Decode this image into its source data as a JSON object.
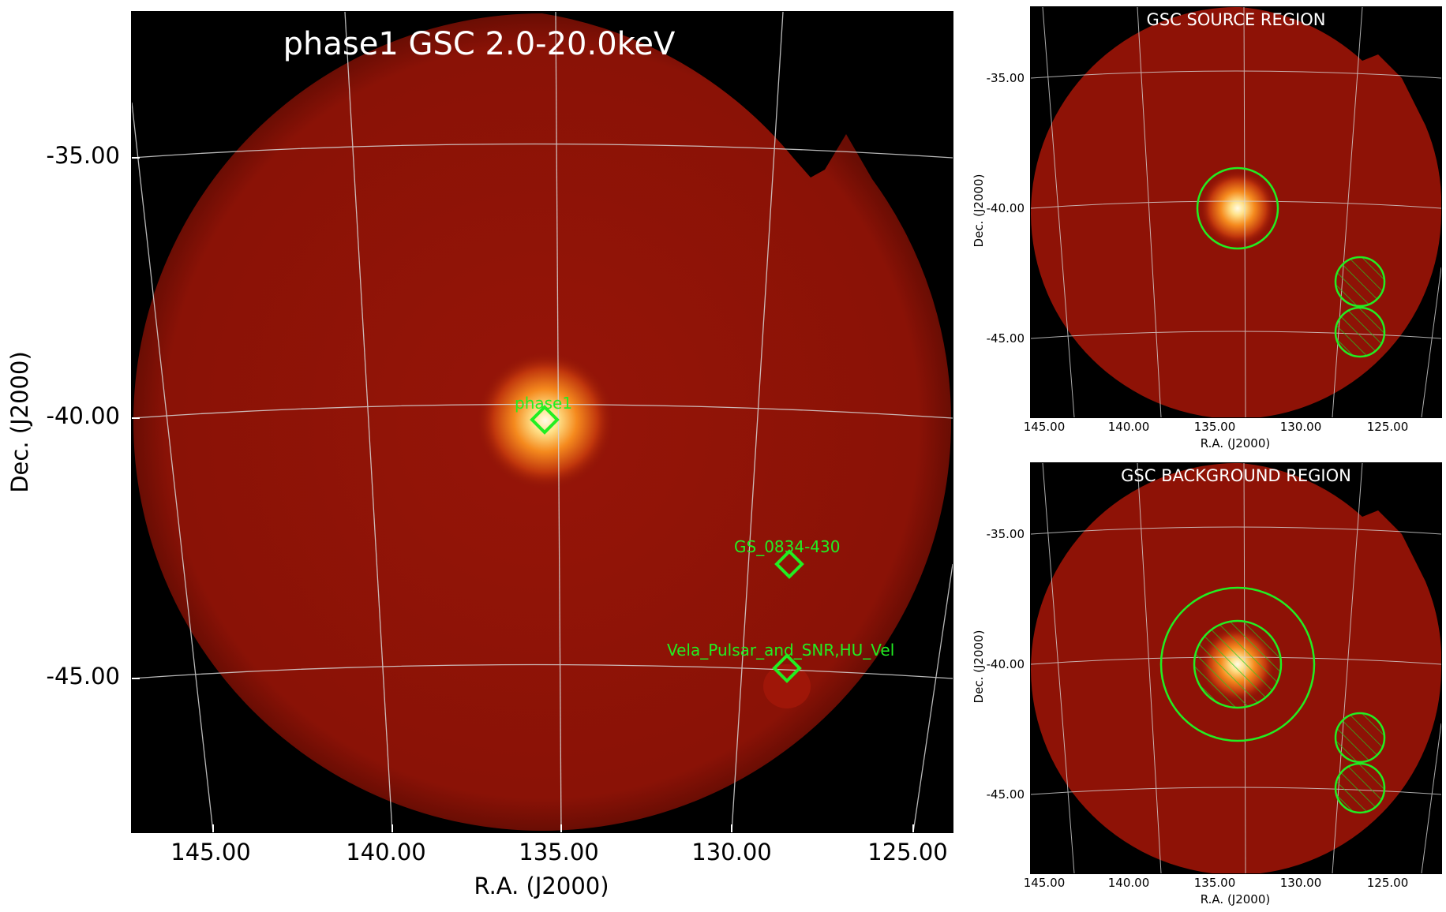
{
  "main": {
    "title": "phase1 GSC 2.0-20.0keV",
    "xlabel": "R.A. (J2000)",
    "ylabel": "Dec. (J2000)",
    "xticks": [
      "145.00",
      "140.00",
      "135.00",
      "130.00",
      "125.00"
    ],
    "yticks": [
      "-35.00",
      "-40.00",
      "-45.00"
    ],
    "sources": [
      {
        "label": "phase1"
      },
      {
        "label": "GS_0834-430"
      },
      {
        "label": "Vela_Pulsar_and_SNR,HU_Vel"
      }
    ]
  },
  "source_panel": {
    "title": "GSC SOURCE REGION",
    "xlabel": "R.A. (J2000)",
    "ylabel": "Dec. (J2000)",
    "xticks": [
      "145.00",
      "140.00",
      "135.00",
      "130.00",
      "125.00"
    ],
    "yticks": [
      "-35.00",
      "-40.00",
      "-45.00"
    ]
  },
  "background_panel": {
    "title": "GSC BACKGROUND REGION",
    "xlabel": "R.A. (J2000)",
    "ylabel": "Dec. (J2000)",
    "xticks": [
      "145.00",
      "140.00",
      "135.00",
      "130.00",
      "125.00"
    ],
    "yticks": [
      "-35.00",
      "-40.00",
      "-45.00"
    ]
  },
  "colors": {
    "field": "#8e1206",
    "source_hot": "#fff2c8",
    "region": "#2ee62e",
    "grid": "#d8d8d8",
    "background": "#000000"
  }
}
